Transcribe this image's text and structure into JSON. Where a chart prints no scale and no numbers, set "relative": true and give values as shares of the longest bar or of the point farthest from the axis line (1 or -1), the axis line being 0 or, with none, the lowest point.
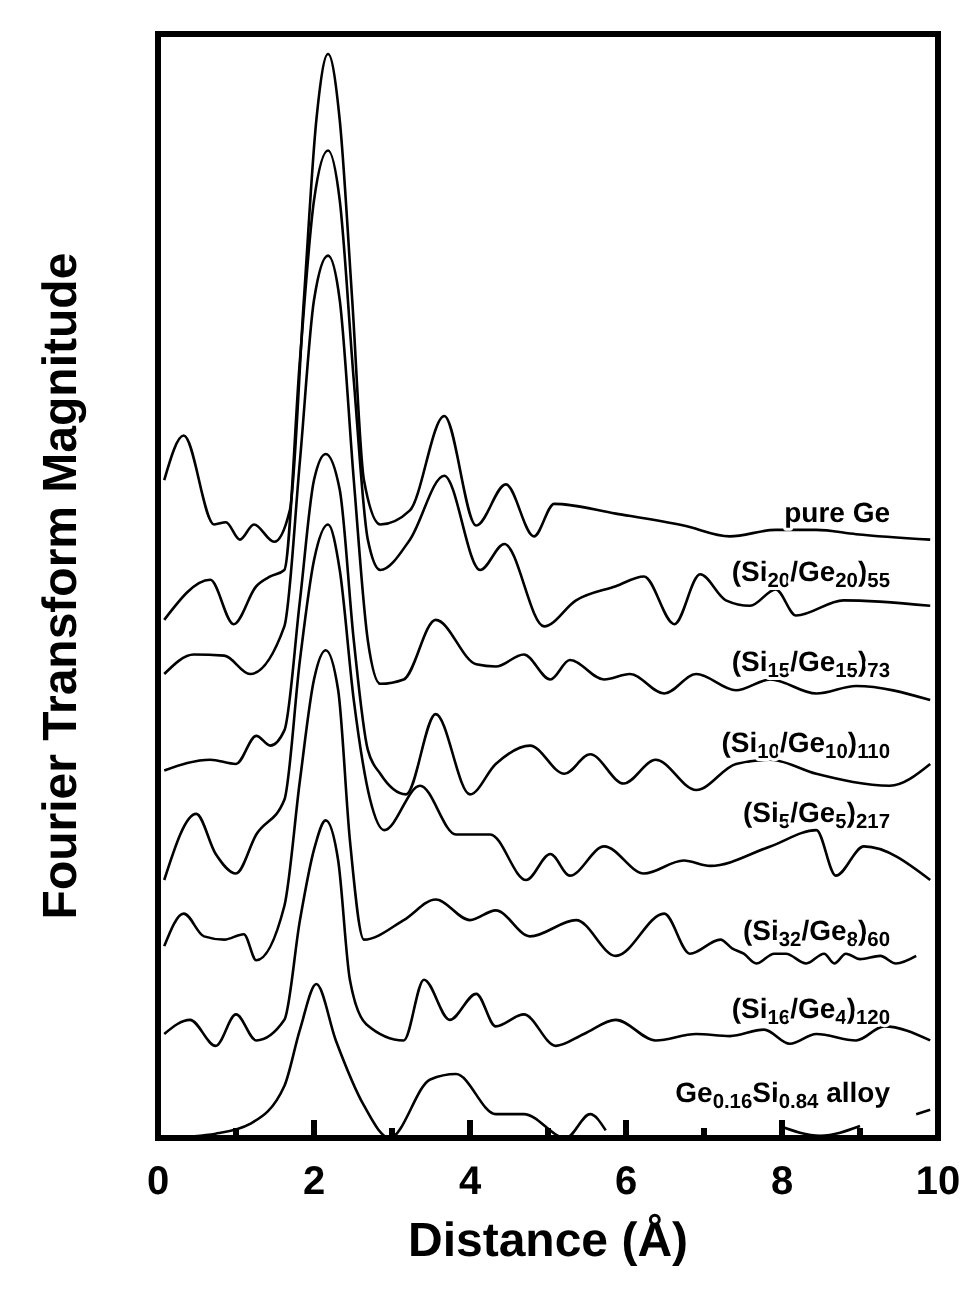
{
  "chart_data": {
    "type": "line",
    "relative": true,
    "xlabel": "Distance (Å)",
    "ylabel": "Fourier Transform Magnitude",
    "xlim": [
      0,
      10
    ],
    "xticks": [
      0,
      {
        "value": 1,
        "label": null
      },
      2,
      {
        "value": 3,
        "label": null
      },
      4,
      {
        "value": 5,
        "label": null
      },
      6,
      {
        "value": 7,
        "label": null
      },
      8,
      {
        "value": 9,
        "label": null
      },
      10
    ],
    "grid": false,
    "legend": false,
    "marker": "none",
    "line_style": "solid",
    "series": [
      {
        "name": "pure Ge",
        "color": "#000000",
        "x": [
          0.08,
          0.33,
          0.72,
          0.87,
          1.05,
          1.23,
          1.49,
          1.69,
          1.87,
          2.03,
          2.18,
          2.33,
          2.49,
          2.64,
          2.85,
          3.23,
          3.67,
          4.08,
          4.46,
          4.82,
          5.08,
          5.87,
          6.74,
          7.33,
          7.92,
          8.44,
          8.95,
          9.9
        ],
        "values": [
          0.607,
          0.648,
          0.566,
          0.568,
          0.552,
          0.566,
          0.55,
          0.579,
          0.773,
          0.939,
          1.0,
          0.939,
          0.773,
          0.607,
          0.566,
          0.579,
          0.666,
          0.565,
          0.603,
          0.555,
          0.585,
          0.576,
          0.565,
          0.555,
          0.561,
          0.561,
          0.557,
          0.552
        ]
      },
      {
        "name": "(Si$_{20}$/Ge$_{20}$)$_{55}$",
        "color": "#000000",
        "x": [
          0.08,
          0.67,
          0.97,
          1.26,
          1.44,
          1.62,
          1.82,
          2.0,
          2.18,
          2.33,
          2.51,
          2.69,
          2.85,
          3.23,
          3.67,
          4.13,
          4.44,
          4.95,
          5.36,
          5.87,
          6.23,
          6.62,
          6.95,
          7.28,
          7.59,
          7.92,
          8.18,
          8.79,
          9.9
        ],
        "values": [
          0.478,
          0.515,
          0.474,
          0.509,
          0.518,
          0.524,
          0.718,
          0.865,
          0.911,
          0.865,
          0.699,
          0.552,
          0.524,
          0.552,
          0.611,
          0.524,
          0.548,
          0.472,
          0.496,
          0.509,
          0.518,
          0.474,
          0.52,
          0.496,
          0.491,
          0.506,
          0.482,
          0.496,
          0.491
        ]
      },
      {
        "name": "(Si$_{15}$/Ge$_{15}$)$_{73}$",
        "color": "#000000",
        "x": [
          0.08,
          0.46,
          0.85,
          1.18,
          1.62,
          1.82,
          2.0,
          2.18,
          2.33,
          2.51,
          2.69,
          2.85,
          3.15,
          3.56,
          4.08,
          4.33,
          4.69,
          5.03,
          5.28,
          5.72,
          6.05,
          6.49,
          6.9,
          7.41,
          7.85,
          8.44,
          8.95,
          9.9
        ],
        "values": [
          0.428,
          0.446,
          0.445,
          0.428,
          0.472,
          0.625,
          0.773,
          0.814,
          0.773,
          0.607,
          0.459,
          0.419,
          0.423,
          0.478,
          0.437,
          0.435,
          0.446,
          0.423,
          0.441,
          0.423,
          0.428,
          0.41,
          0.428,
          0.413,
          0.423,
          0.41,
          0.417,
          0.404
        ]
      },
      {
        "name": "(Si$_{10}$/Ge$_{10}$)$_{110}$",
        "color": "#000000",
        "x": [
          0.08,
          0.67,
          1.0,
          1.26,
          1.44,
          1.62,
          1.82,
          2.0,
          2.15,
          2.33,
          2.51,
          2.69,
          2.85,
          3.18,
          3.56,
          4.0,
          4.33,
          4.77,
          5.21,
          5.54,
          5.97,
          6.38,
          6.9,
          7.41,
          7.85,
          8.44,
          9.38,
          9.9
        ],
        "values": [
          0.339,
          0.349,
          0.345,
          0.371,
          0.362,
          0.376,
          0.496,
          0.607,
          0.631,
          0.598,
          0.459,
          0.358,
          0.336,
          0.317,
          0.391,
          0.317,
          0.345,
          0.362,
          0.336,
          0.354,
          0.327,
          0.349,
          0.321,
          0.345,
          0.349,
          0.336,
          0.325,
          0.345
        ]
      },
      {
        "name": "(Si$_{5}$/Ge$_{5}$)$_{217}$",
        "color": "#000000",
        "x": [
          0.08,
          0.49,
          0.74,
          1.0,
          1.26,
          1.62,
          1.82,
          2.0,
          2.18,
          2.33,
          2.51,
          2.72,
          2.9,
          3.36,
          3.82,
          4.26,
          4.72,
          5.03,
          5.28,
          5.72,
          6.23,
          6.74,
          7.08,
          7.85,
          8.44,
          8.69,
          9.05,
          9.9
        ],
        "values": [
          0.238,
          0.299,
          0.262,
          0.244,
          0.28,
          0.312,
          0.441,
          0.533,
          0.566,
          0.524,
          0.404,
          0.312,
          0.284,
          0.325,
          0.28,
          0.28,
          0.238,
          0.262,
          0.242,
          0.269,
          0.244,
          0.256,
          0.251,
          0.269,
          0.284,
          0.242,
          0.269,
          0.238
        ]
      },
      {
        "name": "(Si$_{32}$/Ge$_{8}$)$_{60}$",
        "color": "#000000",
        "x": [
          0.08,
          0.33,
          0.59,
          0.85,
          1.1,
          1.26,
          1.62,
          1.82,
          2.0,
          2.15,
          2.31,
          2.46,
          2.64,
          3.15,
          3.56,
          4.0,
          4.33,
          4.77,
          5.36,
          5.87,
          6.49,
          6.82,
          7.21,
          7.36,
          7.51,
          7.67,
          7.9,
          7.97,
          8.05,
          8.31,
          8.54,
          8.67,
          8.82,
          9.0,
          9.26,
          9.46,
          9.72
        ],
        "values": [
          0.177,
          0.207,
          0.186,
          0.183,
          0.188,
          0.164,
          0.214,
          0.33,
          0.423,
          0.45,
          0.413,
          0.275,
          0.183,
          0.201,
          0.22,
          0.201,
          0.21,
          0.186,
          0.201,
          0.168,
          0.207,
          0.17,
          0.183,
          0.175,
          0.17,
          0.161,
          0.17,
          0.17,
          0.17,
          0.161,
          0.17,
          0.161,
          0.17,
          0.165,
          0.168,
          0.161,
          0.168
        ]
      },
      {
        "name": "(Si$_{16}$/Ge$_{4}$)$_{120}$",
        "color": "#000000",
        "x": [
          0.08,
          0.41,
          0.74,
          1.0,
          1.26,
          1.62,
          1.82,
          2.0,
          2.15,
          2.31,
          2.46,
          2.67,
          3.15,
          3.41,
          3.74,
          4.08,
          4.33,
          4.69,
          5.1,
          5.46,
          5.87,
          6.38,
          6.9,
          7.33,
          7.77,
          8.1,
          8.44,
          8.95,
          9.31,
          9.9
        ],
        "values": [
          0.096,
          0.109,
          0.085,
          0.114,
          0.09,
          0.109,
          0.201,
          0.266,
          0.293,
          0.256,
          0.146,
          0.105,
          0.09,
          0.146,
          0.109,
          0.133,
          0.103,
          0.114,
          0.085,
          0.096,
          0.109,
          0.09,
          0.096,
          0.094,
          0.1,
          0.087,
          0.096,
          0.09,
          0.103,
          0.09
        ]
      },
      {
        "name": "Ge$_{0.16}$Si$_{0.84}$ alloy",
        "color": "#000000",
        "x": [
          0.08,
          0.74,
          1.18,
          1.62,
          1.82,
          2.03,
          2.28,
          2.64,
          2.97,
          3.49,
          3.82,
          4.33,
          4.69,
          5.23,
          5.54,
          5.74,
          6.5,
          7.97,
          8.49,
          9.0,
          9.3,
          9.72,
          9.9
        ],
        "values": [
          0.0,
          0.004,
          0.013,
          0.048,
          0.1,
          0.142,
          0.09,
          0.03,
          0.0,
          0.054,
          0.059,
          0.022,
          0.022,
          0.0,
          0.022,
          0.007,
          null,
          0.011,
          0.002,
          0.011,
          null,
          0.022,
          0.026
        ]
      }
    ]
  }
}
